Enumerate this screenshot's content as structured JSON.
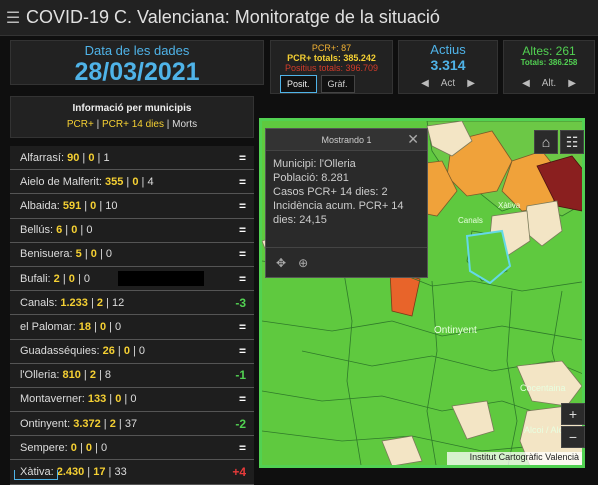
{
  "header": {
    "title": "COVID-19 C. Valenciana: Monitoratge de la situació"
  },
  "date_panel": {
    "label": "Data de les dades",
    "value": "28/03/2021"
  },
  "pcr_panel": {
    "line1": "PCR+: 87",
    "line2": "PCR+ totals: 385.242",
    "line3": "Positius totals: 396.709",
    "tab_posit": "Posit.",
    "tab_graf": "Gràf."
  },
  "actius_panel": {
    "label": "Actius",
    "value": "3.314",
    "pager_label": "Act"
  },
  "altes_panel": {
    "label": "Altes: 261",
    "total": "Totals: 386.258",
    "pager_label": "Alt."
  },
  "list_header": {
    "title": "Informació per municipis",
    "filter_pcr": "PCR+",
    "filter_14": "PCR+ 14 dies",
    "filter_morts": "Morts",
    "sep": " | "
  },
  "municipalities": [
    {
      "name": "Alfarrasí",
      "pcr": "90",
      "pcr14": "0",
      "deaths": "1",
      "trend": "=",
      "trend_color": "#ffffff"
    },
    {
      "name": "Aielo de Malferit",
      "pcr": "355",
      "pcr14": "0",
      "deaths": "4",
      "trend": "=",
      "trend_color": "#ffffff"
    },
    {
      "name": "Albaida",
      "pcr": "591",
      "pcr14": "0",
      "deaths": "10",
      "trend": "=",
      "trend_color": "#ffffff"
    },
    {
      "name": "Bellús",
      "pcr": "6",
      "pcr14": "0",
      "deaths": "0",
      "trend": "=",
      "trend_color": "#ffffff"
    },
    {
      "name": "Benisuera",
      "pcr": "5",
      "pcr14": "0",
      "deaths": "0",
      "trend": "=",
      "trend_color": "#ffffff"
    },
    {
      "name": "Bufali",
      "pcr": "2",
      "pcr14": "0",
      "deaths": "0",
      "trend": "=",
      "trend_color": "#ffffff"
    },
    {
      "name": "Canals",
      "pcr": "1.233",
      "pcr14": "2",
      "deaths": "12",
      "trend": "-3",
      "trend_color": "#52d152"
    },
    {
      "name": "el Palomar",
      "pcr": "18",
      "pcr14": "0",
      "deaths": "0",
      "trend": "=",
      "trend_color": "#ffffff"
    },
    {
      "name": "Guadasséquies",
      "pcr": "26",
      "pcr14": "0",
      "deaths": "0",
      "trend": "=",
      "trend_color": "#ffffff"
    },
    {
      "name": "l'Olleria",
      "pcr": "810",
      "pcr14": "2",
      "deaths": "8",
      "trend": "-1",
      "trend_color": "#52d152"
    },
    {
      "name": "Montaverner",
      "pcr": "133",
      "pcr14": "0",
      "deaths": "0",
      "trend": "=",
      "trend_color": "#ffffff"
    },
    {
      "name": "Ontinyent",
      "pcr": "3.372",
      "pcr14": "2",
      "deaths": "37",
      "trend": "-2",
      "trend_color": "#52d152"
    },
    {
      "name": "Sempere",
      "pcr": "0",
      "pcr14": "0",
      "deaths": "0",
      "trend": "=",
      "trend_color": "#ffffff"
    },
    {
      "name": "Xàtiva",
      "pcr": "2.430",
      "pcr14": "17",
      "deaths": "33",
      "trend": "+4",
      "trend_color": "#e83b3b"
    }
  ],
  "popup": {
    "title": "Mostrando 1",
    "lines": [
      "Municipi: l'Olleria",
      "Població: 8.281",
      "Casos PCR+ 14 dies: 2",
      "Incidència acum. PCR+ 14 dies: 24,15"
    ]
  },
  "map": {
    "labels": [
      "Ontinyent",
      "Cocentaina",
      "Alcoi / Alcoy",
      "Canals",
      "Xàtiva"
    ],
    "attribution": "Institut Cartogràfic Valencià",
    "zoom_in": "+",
    "zoom_out": "−"
  },
  "colors": {
    "accent_blue": "#4fb3e8",
    "green": "#52d152",
    "yellow": "#f5d033",
    "red": "#e83b3b",
    "map_green": "#5fc93f"
  }
}
